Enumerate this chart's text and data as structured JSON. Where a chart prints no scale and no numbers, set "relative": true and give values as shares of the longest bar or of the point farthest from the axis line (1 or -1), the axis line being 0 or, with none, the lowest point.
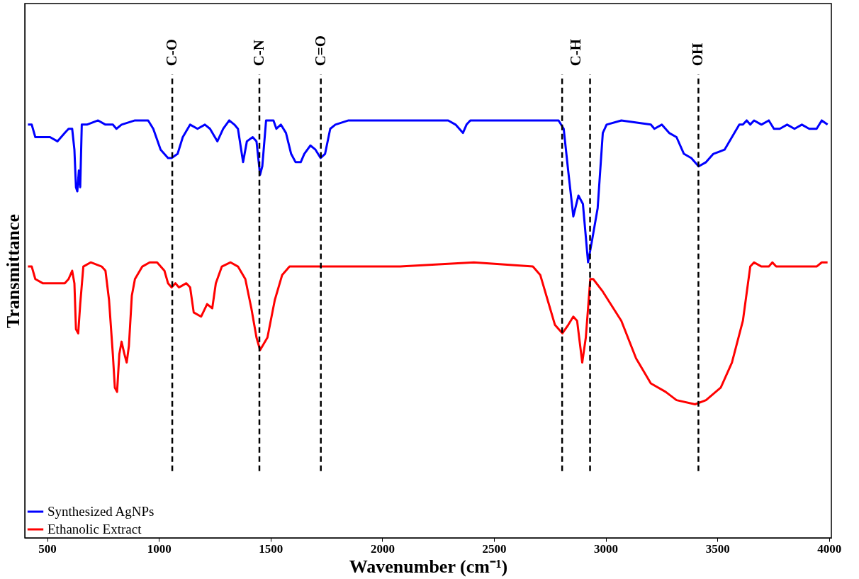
{
  "chart_data": {
    "type": "line",
    "relative": true,
    "xlabel": "Wavenumber (cm⁻¹)",
    "ylabel": "Transmittance",
    "xlim": [
      400,
      4010
    ],
    "xticks": [
      500,
      1000,
      1500,
      2000,
      2500,
      3000,
      3500,
      4000
    ],
    "grid": false,
    "legend": "bottom left",
    "line_style": "solid",
    "marker": "none",
    "series": [
      {
        "name": "Synthesized AgNPs",
        "color": "#0000ff",
        "x": [
          414,
          431,
          447,
          480,
          513,
          546,
          579,
          596,
          612,
          622,
          629,
          635,
          642,
          648,
          655,
          678,
          728,
          761,
          794,
          810,
          833,
          893,
          952,
          975,
          1008,
          1041,
          1057,
          1084,
          1107,
          1140,
          1173,
          1206,
          1229,
          1262,
          1288,
          1315,
          1338,
          1354,
          1377,
          1394,
          1420,
          1437,
          1453,
          1463,
          1480,
          1513,
          1526,
          1546,
          1569,
          1592,
          1612,
          1635,
          1651,
          1678,
          1701,
          1724,
          1744,
          1767,
          1790,
          1849,
          2080,
          2295,
          2328,
          2361,
          2377,
          2394,
          2575,
          2789,
          2812,
          2832,
          2855,
          2878,
          2898,
          2921,
          2938,
          2964,
          2987,
          3004,
          3070,
          3202,
          3218,
          3251,
          3284,
          3317,
          3350,
          3383,
          3416,
          3449,
          3482,
          3532,
          3565,
          3598,
          3614,
          3631,
          3647,
          3664,
          3697,
          3730,
          3753,
          3779,
          3812,
          3845,
          3878,
          3911,
          3944,
          3967,
          3993
        ],
        "values": [
          0.99,
          0.99,
          0.96,
          0.96,
          0.96,
          0.95,
          0.97,
          0.98,
          0.98,
          0.93,
          0.84,
          0.83,
          0.88,
          0.84,
          0.99,
          0.99,
          1.0,
          0.99,
          0.99,
          0.98,
          0.99,
          1.0,
          1.0,
          0.98,
          0.93,
          0.91,
          0.91,
          0.92,
          0.96,
          0.99,
          0.98,
          0.99,
          0.98,
          0.95,
          0.98,
          1.0,
          0.99,
          0.98,
          0.9,
          0.95,
          0.96,
          0.95,
          0.87,
          0.89,
          1.0,
          1.0,
          0.98,
          0.99,
          0.97,
          0.92,
          0.9,
          0.9,
          0.92,
          0.94,
          0.93,
          0.91,
          0.92,
          0.98,
          0.99,
          1.0,
          1.0,
          1.0,
          0.99,
          0.97,
          0.99,
          1.0,
          1.0,
          1.0,
          0.98,
          0.88,
          0.77,
          0.82,
          0.8,
          0.66,
          0.71,
          0.79,
          0.97,
          0.99,
          1.0,
          0.99,
          0.98,
          0.99,
          0.97,
          0.96,
          0.92,
          0.91,
          0.89,
          0.9,
          0.92,
          0.93,
          0.96,
          0.99,
          0.99,
          1.0,
          0.99,
          1.0,
          0.99,
          1.0,
          0.98,
          0.98,
          0.99,
          0.98,
          0.99,
          0.98,
          0.98,
          1.0,
          0.99
        ]
      },
      {
        "name": "Ethanolic Extract",
        "color": "#ff0000",
        "x": [
          414,
          431,
          447,
          480,
          530,
          579,
          596,
          612,
          622,
          629,
          639,
          648,
          662,
          695,
          744,
          761,
          777,
          794,
          803,
          813,
          823,
          833,
          846,
          856,
          866,
          879,
          893,
          926,
          959,
          992,
          1025,
          1041,
          1057,
          1074,
          1090,
          1123,
          1140,
          1156,
          1189,
          1216,
          1239,
          1255,
          1282,
          1321,
          1354,
          1387,
          1414,
          1437,
          1453,
          1486,
          1519,
          1552,
          1585,
          1684,
          1816,
          2080,
          2410,
          2674,
          2707,
          2740,
          2773,
          2806,
          2832,
          2855,
          2872,
          2895,
          2911,
          2931,
          2944,
          2987,
          3070,
          3136,
          3202,
          3268,
          3317,
          3400,
          3449,
          3515,
          3565,
          3614,
          3647,
          3664,
          3697,
          3730,
          3746,
          3763,
          3829,
          3894,
          3944,
          3967,
          3993
        ],
        "values": [
          0.65,
          0.65,
          0.62,
          0.61,
          0.61,
          0.61,
          0.62,
          0.64,
          0.61,
          0.5,
          0.49,
          0.56,
          0.65,
          0.66,
          0.65,
          0.64,
          0.57,
          0.44,
          0.36,
          0.35,
          0.44,
          0.47,
          0.44,
          0.42,
          0.46,
          0.58,
          0.62,
          0.65,
          0.66,
          0.66,
          0.64,
          0.61,
          0.6,
          0.61,
          0.6,
          0.61,
          0.6,
          0.54,
          0.53,
          0.56,
          0.55,
          0.61,
          0.65,
          0.66,
          0.65,
          0.62,
          0.55,
          0.48,
          0.45,
          0.48,
          0.57,
          0.63,
          0.65,
          0.65,
          0.65,
          0.65,
          0.66,
          0.65,
          0.63,
          0.57,
          0.51,
          0.49,
          0.51,
          0.53,
          0.52,
          0.42,
          0.48,
          0.62,
          0.62,
          0.59,
          0.52,
          0.43,
          0.37,
          0.35,
          0.33,
          0.32,
          0.33,
          0.36,
          0.42,
          0.52,
          0.65,
          0.66,
          0.65,
          0.65,
          0.66,
          0.65,
          0.65,
          0.65,
          0.65,
          0.66,
          0.66
        ]
      }
    ],
    "ref_lines": [
      {
        "axis": "x",
        "value": 1060,
        "label": "C-O",
        "color": "#000000",
        "line_style": "dashed"
      },
      {
        "axis": "x",
        "value": 1450,
        "label": "C-N",
        "color": "#000000",
        "line_style": "dashed"
      },
      {
        "axis": "x",
        "value": 1725,
        "label": "C=O",
        "color": "#000000",
        "line_style": "dashed"
      },
      {
        "axis": "x",
        "value": 2805,
        "label": null,
        "color": "#000000",
        "line_style": "dashed"
      },
      {
        "axis": "x",
        "value": 2930,
        "label": null,
        "color": "#000000",
        "line_style": "dashed"
      },
      {
        "axis": "x",
        "value": 3415,
        "label": "OH",
        "color": "#000000",
        "line_style": "dashed"
      }
    ],
    "annotations": [
      "C-H"
    ]
  }
}
